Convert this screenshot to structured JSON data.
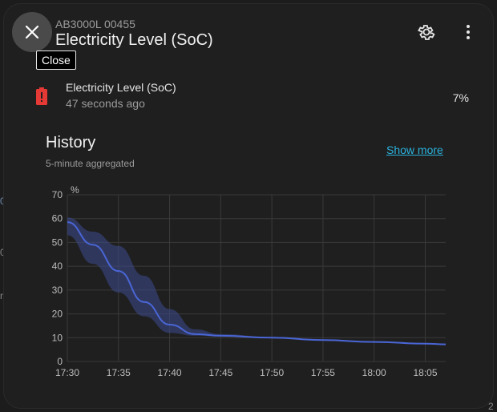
{
  "dialog": {
    "subtitle": "AB3000L 00455",
    "title": "Electricity Level (SoC)",
    "close_tooltip": "Close"
  },
  "icons": {
    "close": "close-icon",
    "settings": "gear-icon",
    "menu": "more-vert-icon",
    "battery": "battery-alert-icon"
  },
  "state": {
    "name": "Electricity Level (SoC)",
    "last_changed": "47 seconds ago",
    "value": "7%"
  },
  "history": {
    "title": "History",
    "subtitle": "5-minute aggregated",
    "show_more": "Show more"
  },
  "background": {
    "frag_a": "0",
    "frag_b": "0",
    "frag_c": "n",
    "frag_d": "2"
  },
  "colors": {
    "accent": "#2ab2dd",
    "line": "#4a66d6",
    "band": "#3d4a8f",
    "battery": "#e53935"
  },
  "chart_data": {
    "type": "area",
    "ylabel": "%",
    "ylim": [
      0,
      70
    ],
    "yticks": [
      0,
      10,
      20,
      30,
      40,
      50,
      60,
      70
    ],
    "xticks": [
      "17:30",
      "17:35",
      "17:40",
      "17:45",
      "17:50",
      "17:55",
      "18:00",
      "18:05"
    ],
    "grid": true,
    "series": [
      {
        "x": [
          "17:30",
          "17:32.5",
          "17:35",
          "17:37.5",
          "17:40",
          "17:42.5",
          "17:45",
          "17:50",
          "17:55",
          "18:00",
          "18:05",
          "18:07"
        ],
        "values": [
          58.5,
          49,
          38,
          25,
          15.5,
          11.5,
          10.8,
          10,
          9,
          8.2,
          7.5,
          7.2
        ],
        "min": [
          53,
          41,
          29,
          19,
          12,
          10.8,
          10.5,
          9.8,
          8.8,
          8,
          7.3,
          7
        ],
        "max": [
          60.5,
          54.5,
          48.5,
          36,
          22,
          13.5,
          11.5,
          10.3,
          9.3,
          8.5,
          7.8,
          7.5
        ]
      }
    ]
  }
}
